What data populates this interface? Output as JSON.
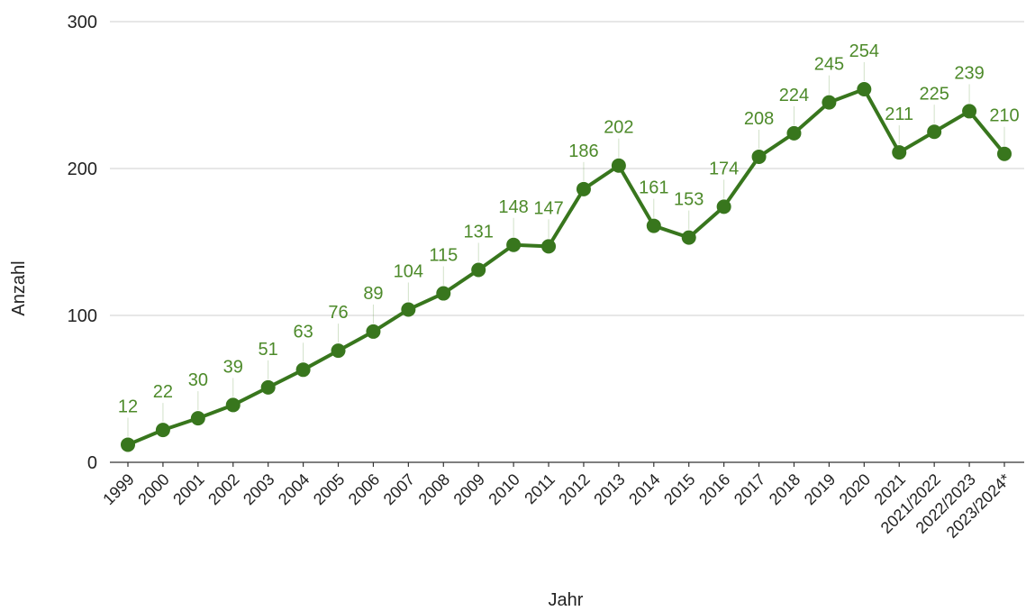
{
  "chart_data": {
    "type": "line",
    "title": "",
    "xlabel": "Jahr",
    "ylabel": "Anzahl",
    "categories": [
      "1999",
      "2000",
      "2001",
      "2002",
      "2003",
      "2004",
      "2005",
      "2006",
      "2007",
      "2008",
      "2009",
      "2010",
      "2011",
      "2012",
      "2013",
      "2014",
      "2015",
      "2016",
      "2017",
      "2018",
      "2019",
      "2020",
      "2021",
      "2021/2022",
      "2022/2023",
      "2023/2024*"
    ],
    "series": [
      {
        "values": [
          12,
          22,
          30,
          39,
          51,
          63,
          76,
          89,
          104,
          115,
          131,
          148,
          147,
          186,
          202,
          161,
          153,
          174,
          208,
          224,
          245,
          254,
          211,
          225,
          239,
          210
        ]
      }
    ],
    "ylim": [
      0,
      300
    ],
    "yticks": [
      0,
      100,
      200,
      300
    ],
    "grid": true,
    "legend": "none",
    "data_labels": true
  },
  "colors": {
    "series": "#38761d",
    "label": "#4d8a2a",
    "grid": "#cfcfcf"
  }
}
